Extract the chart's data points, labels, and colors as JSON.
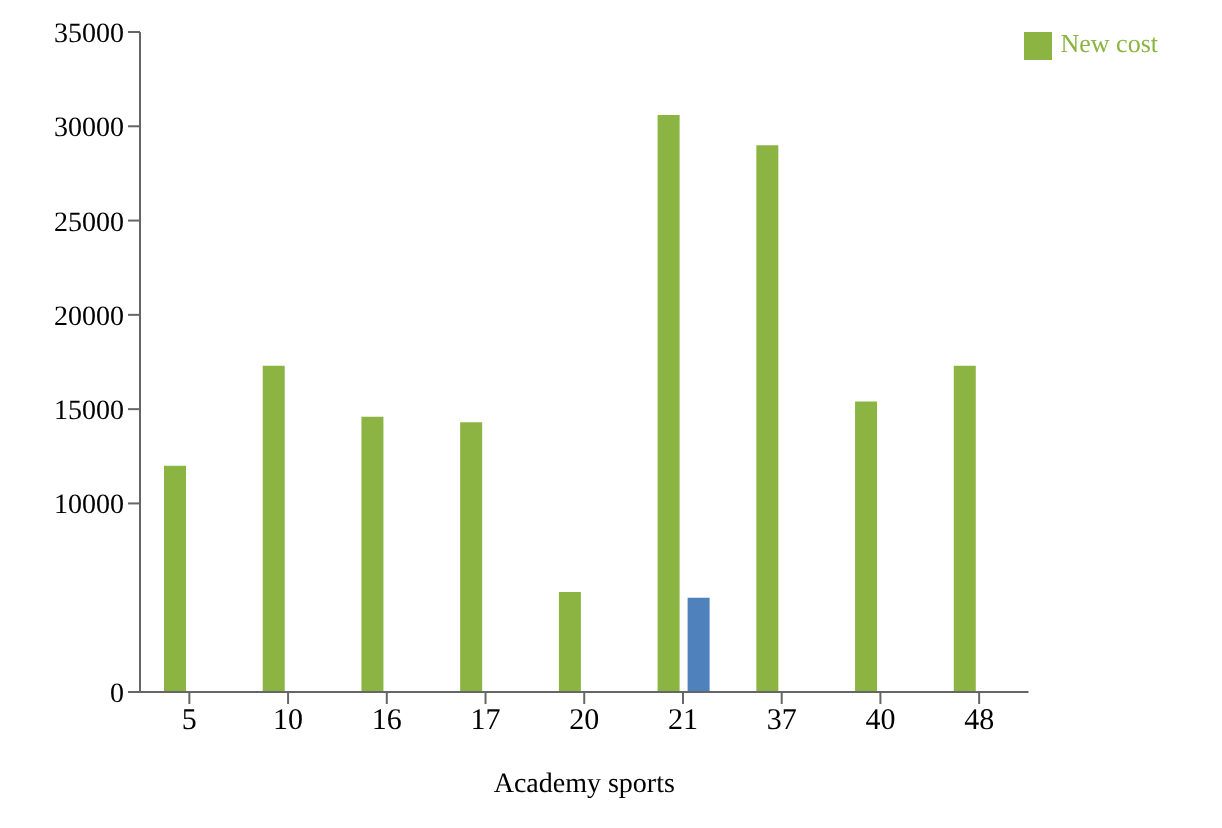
{
  "chart_data": {
    "type": "bar",
    "xlabel": "Academy  sports",
    "categories": [
      "5",
      "10",
      "16",
      "17",
      "20",
      "21",
      "37",
      "40",
      "48"
    ],
    "series": [
      {
        "name": "New cost",
        "color": "#8cb443",
        "values": [
          12000,
          17300,
          14600,
          14300,
          5300,
          30600,
          29000,
          15400,
          17300
        ]
      },
      {
        "color": "#4f81bd",
        "values": [
          null,
          null,
          null,
          null,
          null,
          5000,
          null,
          null,
          null
        ]
      }
    ],
    "ylim": [
      0,
      35000
    ],
    "yticks": [
      0,
      10000,
      15000,
      20000,
      25000,
      30000,
      35000
    ],
    "grid": false,
    "legend": "top right"
  }
}
